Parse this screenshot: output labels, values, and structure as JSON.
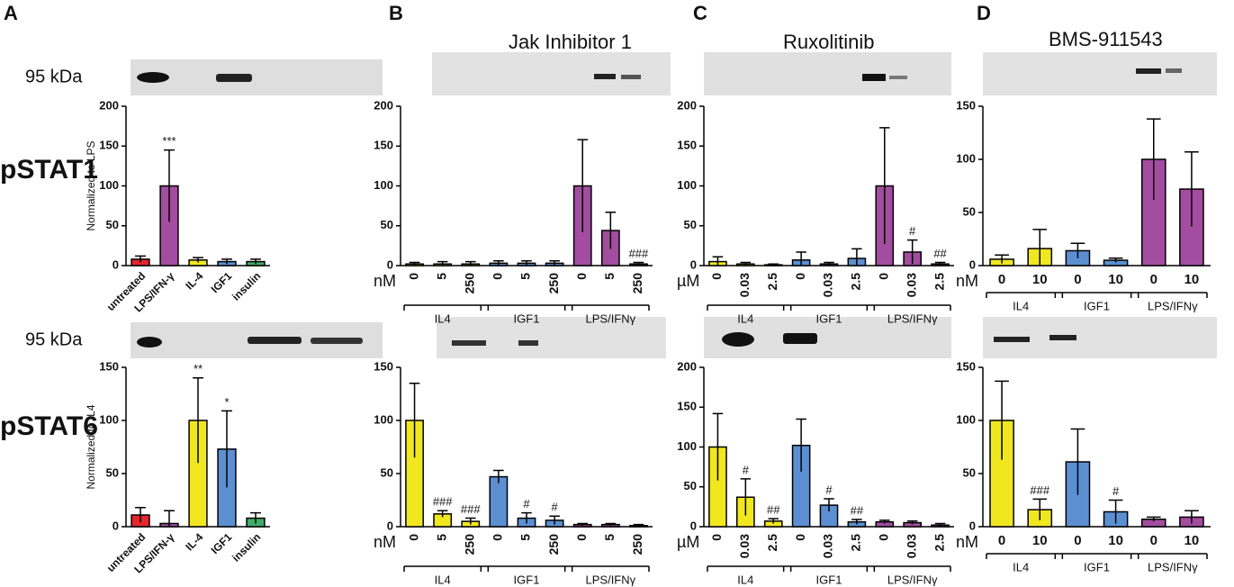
{
  "panel_labels": [
    "A",
    "B",
    "C",
    "D"
  ],
  "row_labels": [
    "pSTAT1",
    "pSTAT6"
  ],
  "blot_labels": [
    "95 kDa",
    "95 kDa"
  ],
  "chart_data": [
    {
      "type": "bar",
      "ylabel": "Normalized to LPS",
      "categories": [
        "untreated",
        "LPS/IFN-γ",
        "IL-4",
        "IGF1",
        "insulin"
      ],
      "values": [
        8,
        100,
        7,
        5,
        5
      ],
      "errors": [
        4,
        45,
        3,
        3,
        3
      ],
      "colors": [
        "#e8252b",
        "#a24d9f",
        "#f1e71f",
        "#5b8fd1",
        "#3fae6a"
      ],
      "ylim": [
        0,
        200
      ],
      "yticks": [
        0,
        50,
        100,
        150,
        200
      ],
      "annotations": [
        {
          "index": 1,
          "text": "***"
        }
      ]
    },
    {
      "type": "bar",
      "ylabel": "Normalized to IL4",
      "categories": [
        "untreated",
        "LPS/IFN-γ",
        "IL-4",
        "IGF1",
        "insulin"
      ],
      "values": [
        11,
        3,
        100,
        73,
        8
      ],
      "errors": [
        7,
        12,
        40,
        36,
        5
      ],
      "colors": [
        "#e8252b",
        "#a24d9f",
        "#f1e71f",
        "#5b8fd1",
        "#3fae6a"
      ],
      "ylim": [
        0,
        150
      ],
      "yticks": [
        0,
        50,
        100,
        150
      ],
      "annotations": [
        {
          "index": 2,
          "text": "**"
        },
        {
          "index": 3,
          "text": "*"
        }
      ]
    },
    {
      "type": "bar",
      "title": "Jak Inhibitor 1",
      "x_unit": "nM",
      "groups": [
        "IL4",
        "IGF1",
        "LPS/IFNγ"
      ],
      "categories": [
        "0",
        "5",
        "250",
        "0",
        "5",
        "250",
        "0",
        "5",
        "250"
      ],
      "values": [
        2,
        2,
        2,
        3,
        3,
        3,
        100,
        44,
        2
      ],
      "errors": [
        2,
        3,
        3,
        3,
        3,
        3,
        58,
        23,
        2
      ],
      "colors": [
        "#f1e71f",
        "#f1e71f",
        "#f1e71f",
        "#5b8fd1",
        "#5b8fd1",
        "#5b8fd1",
        "#a24d9f",
        "#a24d9f",
        "#a24d9f"
      ],
      "ylim": [
        0,
        200
      ],
      "yticks": [
        0,
        50,
        100,
        150,
        200
      ],
      "annotations": [
        {
          "index": 8,
          "text": "###"
        }
      ]
    },
    {
      "type": "bar",
      "x_unit": "nM",
      "groups": [
        "IL4",
        "IGF1",
        "LPS/IFNγ"
      ],
      "categories": [
        "0",
        "5",
        "250",
        "0",
        "5",
        "250",
        "0",
        "5",
        "250"
      ],
      "values": [
        100,
        12,
        5,
        47,
        8,
        6,
        2,
        2,
        1
      ],
      "errors": [
        35,
        3,
        3,
        6,
        5,
        4,
        1,
        1,
        1
      ],
      "colors": [
        "#f1e71f",
        "#f1e71f",
        "#f1e71f",
        "#5b8fd1",
        "#5b8fd1",
        "#5b8fd1",
        "#a24d9f",
        "#a24d9f",
        "#a24d9f"
      ],
      "ylim": [
        0,
        150
      ],
      "yticks": [
        0,
        50,
        100,
        150
      ],
      "annotations": [
        {
          "index": 1,
          "text": "###"
        },
        {
          "index": 2,
          "text": "###"
        },
        {
          "index": 4,
          "text": "#"
        },
        {
          "index": 5,
          "text": "#"
        }
      ]
    },
    {
      "type": "bar",
      "title": "Ruxolitinib",
      "x_unit": "µM",
      "groups": [
        "IL4",
        "IGF1",
        "LPS/IFNγ"
      ],
      "categories": [
        "0",
        "0.03",
        "2.5",
        "0",
        "0.03",
        "2.5",
        "0",
        "0.03",
        "2.5"
      ],
      "values": [
        5,
        2,
        1,
        7,
        2,
        9,
        100,
        17,
        2
      ],
      "errors": [
        6,
        2,
        1,
        10,
        2,
        12,
        73,
        15,
        2
      ],
      "colors": [
        "#f1e71f",
        "#f1e71f",
        "#f1e71f",
        "#5b8fd1",
        "#5b8fd1",
        "#5b8fd1",
        "#a24d9f",
        "#a24d9f",
        "#a24d9f"
      ],
      "ylim": [
        0,
        200
      ],
      "yticks": [
        0,
        50,
        100,
        150,
        200
      ],
      "annotations": [
        {
          "index": 7,
          "text": "#"
        },
        {
          "index": 8,
          "text": "##"
        }
      ]
    },
    {
      "type": "bar",
      "x_unit": "µM",
      "groups": [
        "IL4",
        "IGF1",
        "LPS/IFNγ"
      ],
      "categories": [
        "0",
        "0.03",
        "2.5",
        "0",
        "0.03",
        "2.5",
        "0",
        "0.03",
        "2.5"
      ],
      "values": [
        100,
        37,
        7,
        102,
        27,
        6,
        6,
        5,
        2
      ],
      "errors": [
        42,
        23,
        3,
        33,
        8,
        3,
        2,
        2,
        2
      ],
      "colors": [
        "#f1e71f",
        "#f1e71f",
        "#f1e71f",
        "#5b8fd1",
        "#5b8fd1",
        "#5b8fd1",
        "#a24d9f",
        "#a24d9f",
        "#a24d9f"
      ],
      "ylim": [
        0,
        200
      ],
      "yticks": [
        0,
        50,
        100,
        150,
        200
      ],
      "annotations": [
        {
          "index": 1,
          "text": "#"
        },
        {
          "index": 2,
          "text": "##"
        },
        {
          "index": 4,
          "text": "#"
        },
        {
          "index": 5,
          "text": "##"
        }
      ]
    },
    {
      "type": "bar",
      "title": "BMS-911543",
      "x_unit": "nM",
      "groups": [
        "IL4",
        "IGF1",
        "LPS/IFNγ"
      ],
      "categories": [
        "0",
        "10",
        "0",
        "10",
        "0",
        "10"
      ],
      "values": [
        6,
        16,
        14,
        5,
        100,
        72
      ],
      "errors": [
        4,
        18,
        7,
        2,
        38,
        35
      ],
      "colors": [
        "#f1e71f",
        "#f1e71f",
        "#5b8fd1",
        "#5b8fd1",
        "#a24d9f",
        "#a24d9f"
      ],
      "ylim": [
        0,
        150
      ],
      "yticks": [
        0,
        50,
        100,
        150
      ]
    },
    {
      "type": "bar",
      "x_unit": "nM",
      "groups": [
        "IL4",
        "IGF1",
        "LPS/IFNγ"
      ],
      "categories": [
        "0",
        "10",
        "0",
        "10",
        "0",
        "10"
      ],
      "values": [
        100,
        16,
        61,
        14,
        7,
        9
      ],
      "errors": [
        37,
        10,
        31,
        11,
        2,
        6
      ],
      "colors": [
        "#f1e71f",
        "#f1e71f",
        "#5b8fd1",
        "#5b8fd1",
        "#a24d9f",
        "#a24d9f"
      ],
      "ylim": [
        0,
        150
      ],
      "yticks": [
        0,
        50,
        100,
        150
      ],
      "annotations": [
        {
          "index": 1,
          "text": "###"
        },
        {
          "index": 3,
          "text": "#"
        }
      ]
    }
  ]
}
